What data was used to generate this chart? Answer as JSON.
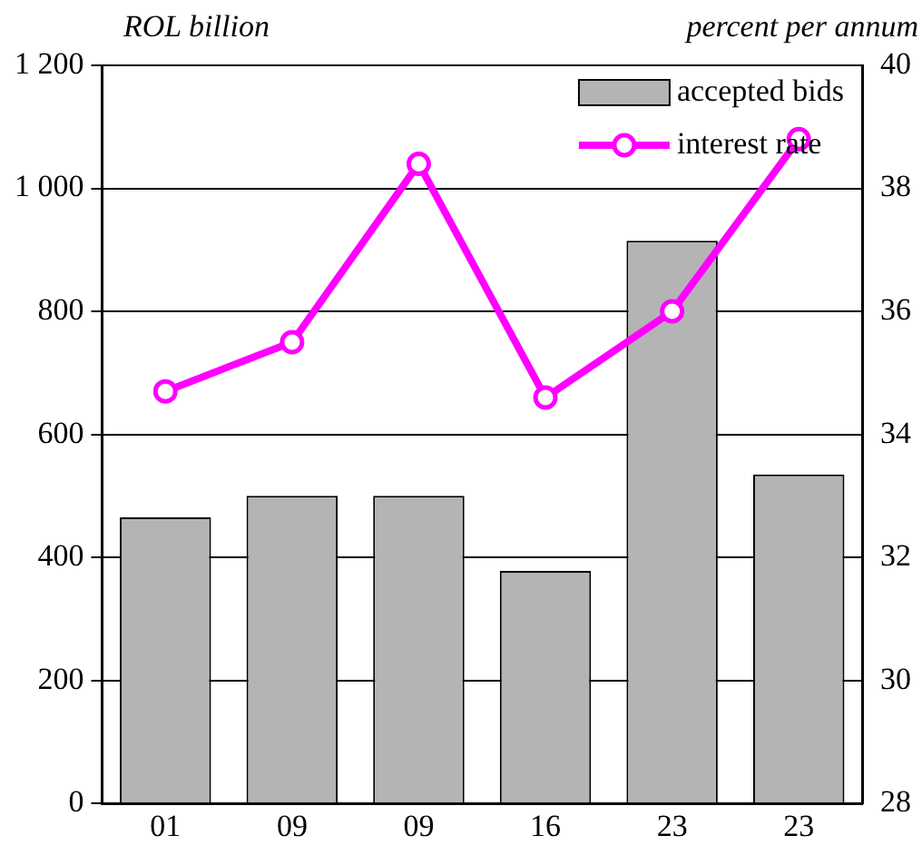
{
  "chart_data": {
    "type": "bar",
    "ylabel": "ROL billion",
    "y2label": "percent per annum",
    "categories": [
      "01",
      "09",
      "09",
      "16",
      "23",
      "23"
    ],
    "series": [
      {
        "name": "accepted bids",
        "color": "#b4b4b4",
        "values": [
          465,
          500,
          500,
          378,
          915,
          535
        ]
      },
      {
        "name": "interest rate",
        "type": "line",
        "axis": "y2",
        "color": "#ff00ff",
        "marker": "circle",
        "values": [
          34.7,
          35.5,
          38.4,
          34.6,
          36.0,
          38.8
        ]
      }
    ],
    "ylim": [
      0,
      1200
    ],
    "yticks": [
      0,
      200,
      400,
      600,
      800,
      {
        "value": 1000,
        "label": "1 000"
      },
      {
        "value": 1200,
        "label": "1 200"
      }
    ],
    "y2lim": [
      28,
      40
    ],
    "y2ticks": [
      28,
      30,
      32,
      34,
      36,
      38,
      40
    ],
    "grid": "y",
    "legend": "top right"
  }
}
